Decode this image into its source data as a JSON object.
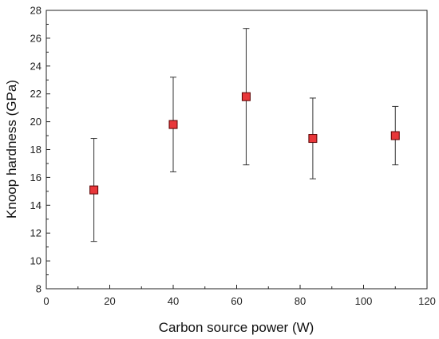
{
  "chart_data": {
    "type": "scatter",
    "title": "",
    "xlabel": "Carbon source power (W)",
    "ylabel": "Knoop hardness (GPa)",
    "xlim": [
      0,
      120
    ],
    "ylim": [
      8,
      28
    ],
    "xticks": [
      0,
      20,
      40,
      60,
      80,
      100,
      120
    ],
    "yticks": [
      8,
      10,
      12,
      14,
      16,
      18,
      20,
      22,
      24,
      26,
      28
    ],
    "grid": false,
    "legend": "none",
    "series": [
      {
        "color": "#e8373a",
        "marker": "square",
        "points": [
          {
            "x": 15,
            "y": 15.1,
            "ylow": 11.4,
            "yhigh": 18.8
          },
          {
            "x": 40,
            "y": 19.8,
            "ylow": 16.4,
            "yhigh": 23.2
          },
          {
            "x": 63,
            "y": 21.8,
            "ylow": 16.9,
            "yhigh": 26.7
          },
          {
            "x": 84,
            "y": 18.8,
            "ylow": 15.9,
            "yhigh": 21.7
          },
          {
            "x": 110,
            "y": 19.0,
            "ylow": 16.9,
            "yhigh": 21.1
          }
        ]
      }
    ]
  }
}
